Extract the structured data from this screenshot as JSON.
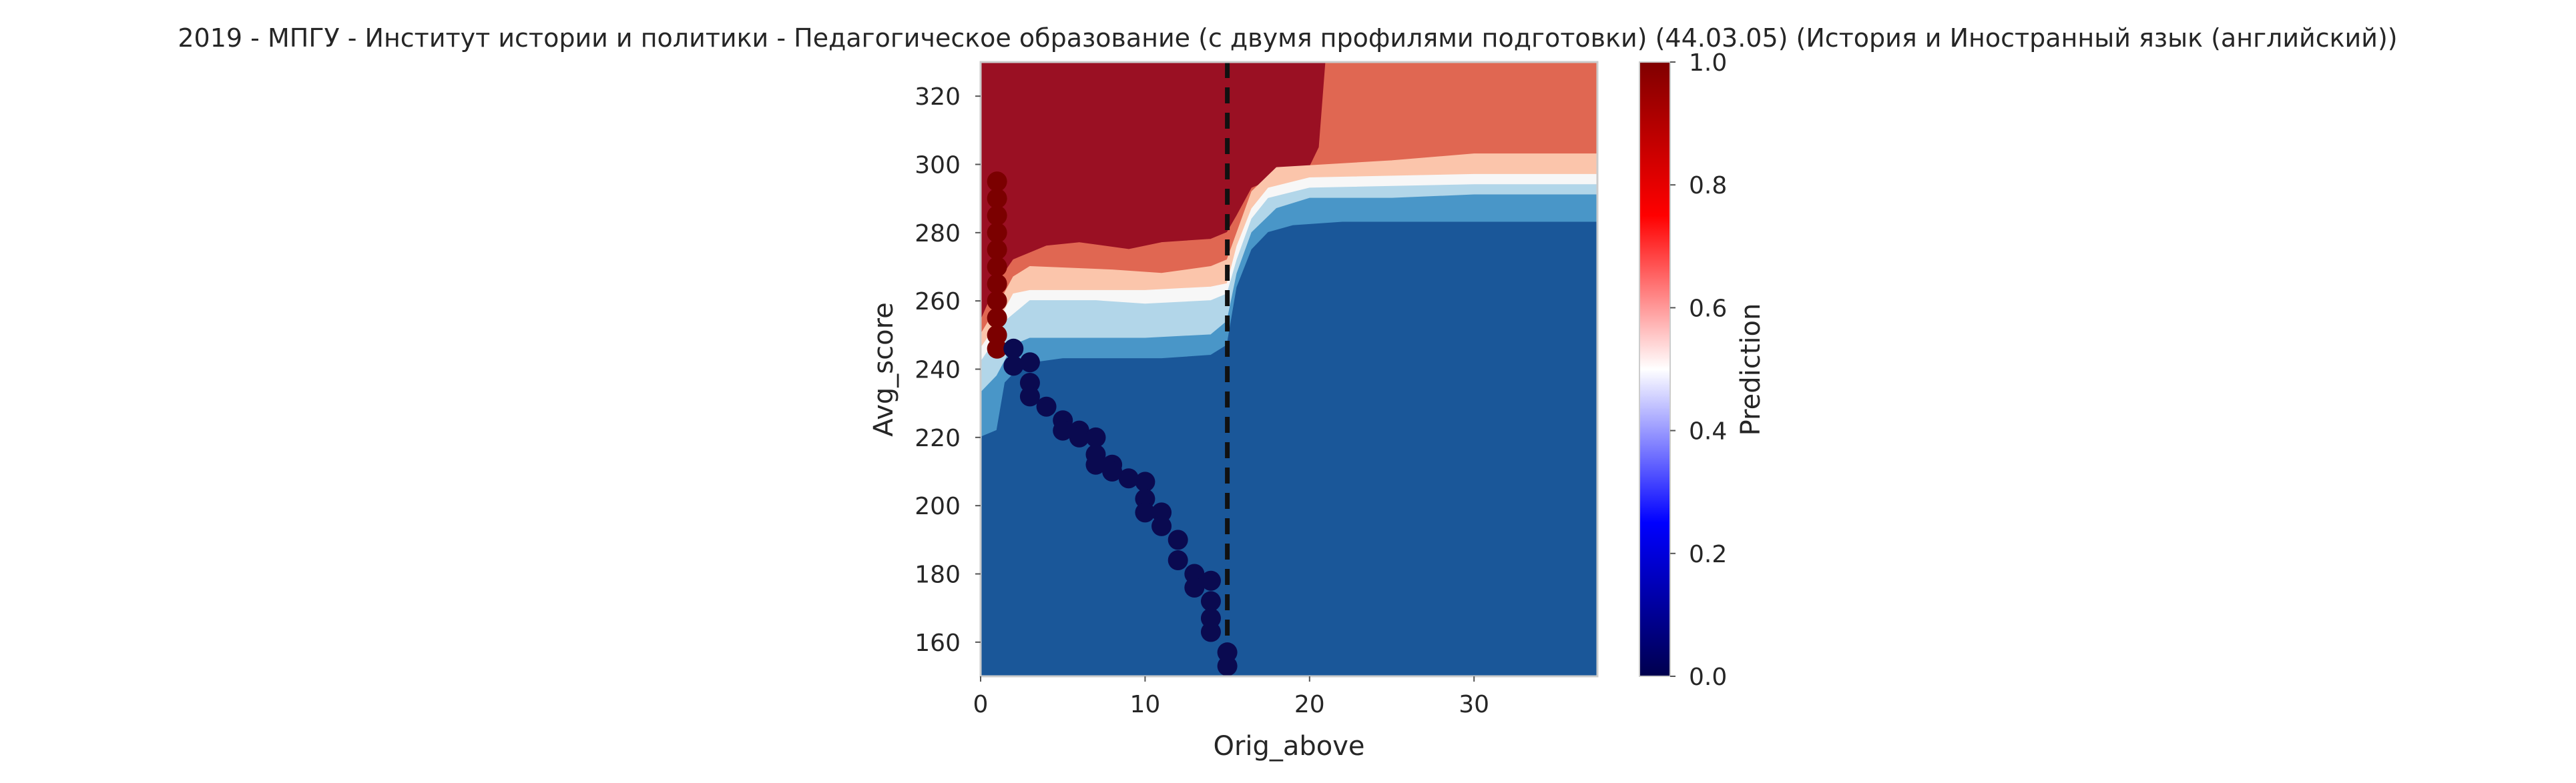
{
  "chart_data": {
    "type": "contour",
    "title": "2019 - МПГУ - Институт истории и политики - Педагогическое образование (с двумя профилями подготовки) (44.03.05) (История и Иностранный язык (английский))",
    "xlabel": "Orig_above",
    "ylabel": "Avg_score",
    "xlim": [
      0,
      37.5
    ],
    "ylim": [
      150,
      330
    ],
    "xticks": [
      0,
      10,
      20,
      30
    ],
    "yticks": [
      160,
      180,
      200,
      220,
      240,
      260,
      280,
      300,
      320
    ],
    "grid": false,
    "contour": {
      "colormap": "RdBu_r",
      "levels": [
        0.0,
        0.1,
        0.2,
        0.3,
        0.4,
        0.5,
        0.6,
        0.7,
        0.8,
        0.9,
        1.0
      ],
      "level_colors": [
        "#1a5799",
        "#4996c8",
        "#b2d6e9",
        "#f7f7f7",
        "#fbc5ab",
        "#e06752",
        "#9a1023"
      ]
    },
    "threshold_line": {
      "x": 15,
      "style": "dashed",
      "color": "#111111"
    },
    "points": {
      "series": [
        {
          "color": "#7b0000",
          "x": [
            1,
            1,
            1,
            1,
            1,
            1,
            1,
            1,
            1,
            1,
            1
          ],
          "y": [
            295,
            290,
            285,
            280,
            275,
            270,
            265,
            260,
            255,
            250,
            246
          ]
        },
        {
          "color": "#0a0a50",
          "x": [
            2,
            2,
            3,
            3,
            3,
            4,
            5,
            5,
            6,
            6,
            7,
            7,
            7,
            8,
            8,
            9,
            10,
            10,
            10,
            11,
            11,
            12,
            12,
            13,
            13,
            14,
            14,
            14,
            14,
            15,
            15
          ],
          "y": [
            246,
            241,
            242,
            236,
            232,
            229,
            225,
            222,
            222,
            220,
            220,
            215,
            212,
            212,
            210,
            208,
            207,
            202,
            198,
            198,
            194,
            190,
            184,
            180,
            176,
            178,
            172,
            167,
            163,
            157,
            153
          ]
        }
      ]
    },
    "colorbar": {
      "label": "Prediction",
      "range": [
        0.0,
        1.0
      ],
      "ticks": [
        "0.0",
        "0.2",
        "0.4",
        "0.6",
        "0.8",
        "1.0"
      ]
    }
  }
}
